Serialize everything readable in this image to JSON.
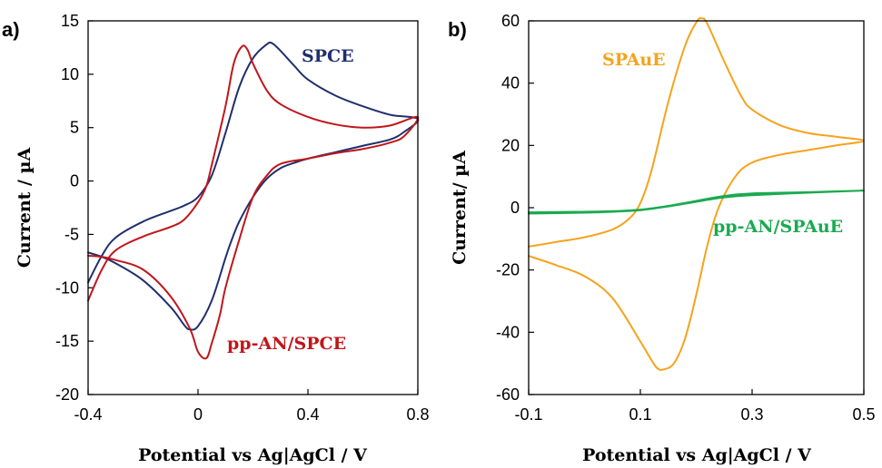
{
  "chart_data": [
    {
      "type": "line",
      "panel_label": "a)",
      "xlabel": "Potential vs Ag|AgCl / V",
      "ylabel": "Current / µA",
      "xlim": [
        -0.4,
        0.8
      ],
      "ylim": [
        -20,
        15
      ],
      "xticks": [
        -0.4,
        0,
        0.4,
        0.8
      ],
      "xtick_labels": [
        "-0.4",
        "0",
        "0.4",
        "0.8"
      ],
      "yticks": [
        -20,
        -15,
        -10,
        -5,
        0,
        5,
        10,
        15
      ],
      "ytick_labels": [
        "-20",
        "-15",
        "-10",
        "-5",
        "0",
        "5",
        "10",
        "15"
      ],
      "grid": false,
      "series": [
        {
          "name": "SPCE",
          "color": "#1f2f6e",
          "x": [
            -0.4,
            -0.35,
            -0.3,
            -0.2,
            -0.1,
            -0.05,
            0.0,
            0.05,
            0.1,
            0.15,
            0.2,
            0.25,
            0.27,
            0.3,
            0.35,
            0.4,
            0.5,
            0.6,
            0.7,
            0.8,
            0.75,
            0.7,
            0.6,
            0.5,
            0.4,
            0.35,
            0.3,
            0.25,
            0.2,
            0.15,
            0.12,
            0.1,
            0.05,
            0.0,
            -0.03,
            -0.05,
            -0.1,
            -0.2,
            -0.3,
            -0.35,
            -0.4
          ],
          "y": [
            -9.5,
            -7.0,
            -5.3,
            -3.8,
            -2.8,
            -2.3,
            -1.5,
            0.5,
            4.5,
            8.8,
            11.5,
            12.8,
            12.9,
            12.2,
            10.8,
            9.5,
            8.0,
            7.0,
            6.2,
            5.8,
            4.6,
            3.9,
            3.3,
            2.7,
            2.1,
            1.7,
            1.2,
            0.2,
            -1.5,
            -3.8,
            -5.7,
            -7.2,
            -11.2,
            -13.6,
            -13.9,
            -13.5,
            -11.8,
            -9.3,
            -7.7,
            -7.1,
            -6.7
          ]
        },
        {
          "name": "pp-AN/SPCE",
          "color": "#c0161b",
          "x": [
            -0.4,
            -0.35,
            -0.3,
            -0.2,
            -0.1,
            -0.05,
            0.0,
            0.03,
            0.05,
            0.1,
            0.13,
            0.16,
            0.18,
            0.2,
            0.25,
            0.3,
            0.4,
            0.5,
            0.6,
            0.7,
            0.8,
            0.75,
            0.7,
            0.6,
            0.5,
            0.4,
            0.3,
            0.25,
            0.2,
            0.15,
            0.1,
            0.08,
            0.05,
            0.03,
            0.0,
            -0.03,
            -0.1,
            -0.2,
            -0.3,
            -0.35,
            -0.4
          ],
          "y": [
            -11.2,
            -8.3,
            -6.5,
            -5.2,
            -4.3,
            -3.6,
            -2.0,
            -0.5,
            1.5,
            7.0,
            11.0,
            12.6,
            12.3,
            11.0,
            8.5,
            7.2,
            6.0,
            5.3,
            5.0,
            5.2,
            6.0,
            4.2,
            3.6,
            3.0,
            2.6,
            2.1,
            1.6,
            0.5,
            -1.5,
            -5.5,
            -10.0,
            -12.5,
            -15.2,
            -16.6,
            -16.0,
            -13.8,
            -10.8,
            -8.3,
            -7.4,
            -7.1,
            -7.0
          ]
        }
      ],
      "annotations": [
        {
          "text": "SPCE",
          "series": "SPCE"
        },
        {
          "text": "pp-AN/SPCE",
          "series": "pp-AN/SPCE"
        }
      ]
    },
    {
      "type": "line",
      "panel_label": "b)",
      "xlabel": "Potential vs Ag|AgCl / V",
      "ylabel": "Current/ µA",
      "xlim": [
        -0.1,
        0.5
      ],
      "ylim": [
        -60,
        60
      ],
      "xticks": [
        -0.1,
        0.1,
        0.3,
        0.5
      ],
      "xtick_labels": [
        "-0.1",
        "0.1",
        "0.3",
        "0.5"
      ],
      "yticks": [
        -60,
        -40,
        -20,
        0,
        20,
        40,
        60
      ],
      "ytick_labels": [
        "-60",
        "-40",
        "-20",
        "0",
        "20",
        "40",
        "60"
      ],
      "grid": false,
      "series": [
        {
          "name": "SPAuE",
          "color": "#f5a31c",
          "x": [
            -0.1,
            -0.05,
            0.0,
            0.05,
            0.08,
            0.1,
            0.12,
            0.15,
            0.18,
            0.2,
            0.21,
            0.22,
            0.25,
            0.28,
            0.3,
            0.35,
            0.4,
            0.45,
            0.5,
            0.45,
            0.4,
            0.35,
            0.3,
            0.27,
            0.24,
            0.22,
            0.2,
            0.18,
            0.16,
            0.14,
            0.13,
            0.12,
            0.1,
            0.05,
            0.0,
            -0.05,
            -0.1
          ],
          "y": [
            -12.5,
            -11.0,
            -9.5,
            -7.0,
            -3.5,
            1.5,
            12.0,
            34.0,
            52.0,
            59.5,
            60.8,
            59.0,
            47.0,
            36.0,
            31.5,
            26.5,
            24.0,
            22.8,
            21.5,
            20.0,
            18.5,
            17.0,
            14.5,
            10.0,
            0.0,
            -12.0,
            -28.0,
            -42.0,
            -50.0,
            -52.0,
            -51.5,
            -49.0,
            -43.0,
            -29.0,
            -22.0,
            -18.5,
            -15.5
          ]
        },
        {
          "name": "pp-AN/SPAuE",
          "color": "#1aaa50",
          "x": [
            -0.1,
            0.0,
            0.05,
            0.1,
            0.15,
            0.2,
            0.25,
            0.3,
            0.4,
            0.5,
            0.4,
            0.3,
            0.25,
            0.2,
            0.15,
            0.1,
            0.05,
            0.0,
            -0.1
          ],
          "y": [
            -1.5,
            -1.3,
            -1.1,
            -0.6,
            0.6,
            2.2,
            3.8,
            4.6,
            5.0,
            5.5,
            4.8,
            4.0,
            3.3,
            1.9,
            0.4,
            -0.8,
            -1.3,
            -1.6,
            -1.9
          ]
        }
      ],
      "annotations": [
        {
          "text": "SPAuE",
          "series": "SPAuE"
        },
        {
          "text": "pp-AN/SPAuE",
          "series": "pp-AN/SPAuE"
        }
      ]
    }
  ]
}
